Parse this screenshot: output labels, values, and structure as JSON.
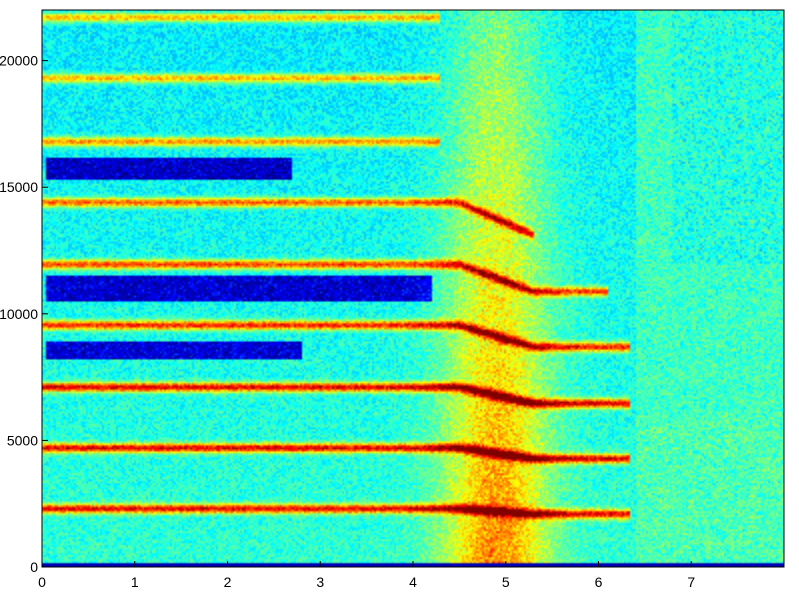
{
  "chart_data": {
    "type": "heatmap",
    "title": "",
    "xlabel": "",
    "ylabel": "",
    "xlim": [
      0,
      8
    ],
    "ylim": [
      0,
      22000
    ],
    "x_ticks": [
      0,
      1,
      2,
      3,
      4,
      5,
      6,
      7
    ],
    "x_tick_labels": [
      "0",
      "1",
      "2",
      "3",
      "4",
      "5",
      "6",
      "7"
    ],
    "y_ticks": [
      0,
      5000,
      10000,
      15000,
      20000
    ],
    "y_tick_labels": [
      "0",
      "5000",
      "10000",
      "15000",
      "20000"
    ],
    "colormap": "jet",
    "colormap_stops": [
      "#00008f",
      "#0000ff",
      "#00ffff",
      "#ffff00",
      "#ff0000",
      "#800000"
    ],
    "harmonics": [
      {
        "freq": 2300,
        "end": 6.35,
        "strength": 0.95
      },
      {
        "freq": 4700,
        "end": 6.35,
        "strength": 0.98
      },
      {
        "freq": 7100,
        "end": 6.35,
        "strength": 1.0
      },
      {
        "freq": 9550,
        "end": 6.35,
        "strength": 0.9
      },
      {
        "freq": 11950,
        "end": 6.1,
        "strength": 0.85
      },
      {
        "freq": 14400,
        "end": 5.3,
        "strength": 0.8
      },
      {
        "freq": 16800,
        "end": 4.3,
        "strength": 0.7
      },
      {
        "freq": 19300,
        "end": 4.3,
        "strength": 0.65
      },
      {
        "freq": 21700,
        "end": 4.3,
        "strength": 0.65
      }
    ],
    "cold_regions": [
      {
        "x0": 0.05,
        "x1": 2.7,
        "y0": 15300,
        "y1": 16200
      },
      {
        "x0": 0.05,
        "x1": 4.2,
        "y0": 10500,
        "y1": 11500
      },
      {
        "x0": 0.05,
        "x1": 2.8,
        "y0": 8200,
        "y1": 8900
      }
    ]
  }
}
